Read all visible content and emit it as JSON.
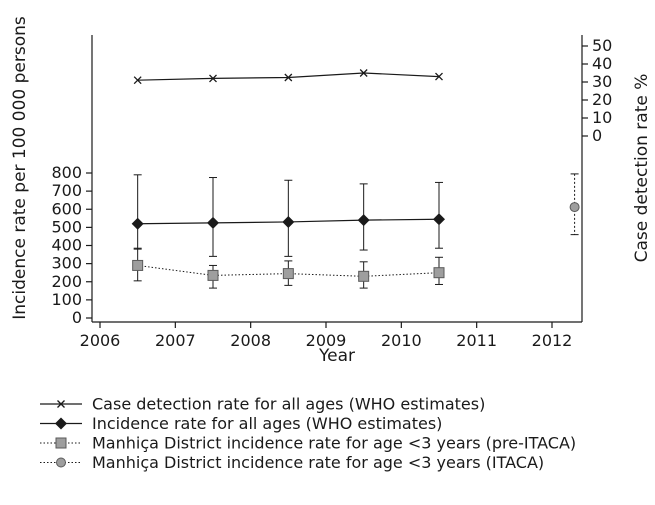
{
  "chart_data": {
    "type": "line",
    "xlabel": "Year",
    "ylabel_left": "Incidence rate per 100 000 persons",
    "ylabel_right": "Case detection rate %",
    "x_ticks": [
      "2006",
      "2007",
      "2008",
      "2009",
      "2010",
      "2011",
      "2012"
    ],
    "xlim": [
      2006,
      2012.4
    ],
    "ylim_left": [
      0,
      800
    ],
    "y_ticks_left": [
      "0",
      "100",
      "200",
      "300",
      "400",
      "500",
      "600",
      "700",
      "800"
    ],
    "ylim_right": [
      0,
      50
    ],
    "y_ticks_right": [
      "0",
      "10",
      "20",
      "30",
      "40",
      "50"
    ],
    "grid": false,
    "legend_position": "bottom",
    "series": [
      {
        "name": "Case detection rate for all ages (WHO estimates)",
        "axis": "right",
        "marker": "x",
        "line": "solid",
        "x": [
          2006.5,
          2007.5,
          2008.5,
          2009.5,
          2010.5
        ],
        "y": [
          31,
          32,
          32.5,
          35,
          33
        ]
      },
      {
        "name": "Incidence rate for all ages (WHO estimates)",
        "axis": "left",
        "marker": "diamond",
        "line": "solid",
        "color": "#1a1a1a",
        "x": [
          2006.5,
          2007.5,
          2008.5,
          2009.5,
          2010.5
        ],
        "y": [
          520,
          525,
          530,
          540,
          545
        ],
        "y_low": [
          380,
          340,
          340,
          375,
          385
        ],
        "y_high": [
          790,
          775,
          760,
          740,
          748
        ]
      },
      {
        "name": "Manhiça District incidence rate for age <3 years (pre-ITACA)",
        "axis": "left",
        "marker": "square",
        "line": "dotted",
        "color": "#9e9e9e",
        "x": [
          2006.5,
          2007.5,
          2008.5,
          2009.5,
          2010.5
        ],
        "y": [
          290,
          235,
          245,
          230,
          250
        ],
        "y_low": [
          205,
          165,
          180,
          165,
          185
        ],
        "y_high": [
          385,
          290,
          315,
          310,
          335
        ]
      },
      {
        "name": "Manhiça District incidence rate for age <3 years (ITACA)",
        "axis": "left",
        "marker": "circle",
        "line": "dotted",
        "color": "#9e9e9e",
        "x": [
          2012.3
        ],
        "y": [
          612
        ],
        "y_low": [
          460
        ],
        "y_high": [
          795
        ]
      }
    ]
  }
}
